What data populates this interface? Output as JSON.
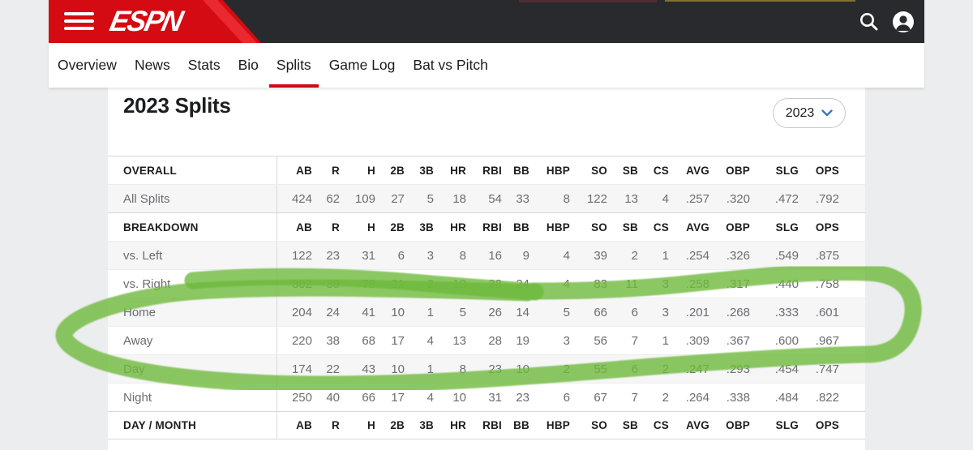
{
  "header": {
    "brand": "ESPN",
    "colors": {
      "red": "#d40b12",
      "dark": "#282a2d"
    }
  },
  "nav": {
    "items": [
      {
        "label": "Overview",
        "active": false
      },
      {
        "label": "News",
        "active": false
      },
      {
        "label": "Stats",
        "active": false
      },
      {
        "label": "Bio",
        "active": false
      },
      {
        "label": "Splits",
        "active": true
      },
      {
        "label": "Game Log",
        "active": false
      },
      {
        "label": "Bat vs Pitch",
        "active": false
      }
    ],
    "active_underline_color": "#cf0a11"
  },
  "main": {
    "title": "2023 Splits",
    "year_select": {
      "value": "2023"
    }
  },
  "table": {
    "columns": [
      "AB",
      "R",
      "H",
      "2B",
      "3B",
      "HR",
      "RBI",
      "BB",
      "HBP",
      "SO",
      "SB",
      "CS",
      "AVG",
      "OBP",
      "SLG",
      "OPS"
    ],
    "sections": [
      {
        "label": "OVERALL",
        "rows": [
          {
            "label": "All Splits",
            "values": [
              "424",
              "62",
              "109",
              "27",
              "5",
              "18",
              "54",
              "33",
              "8",
              "122",
              "13",
              "4",
              ".257",
              ".320",
              ".472",
              ".792"
            ]
          }
        ]
      },
      {
        "label": "BREAKDOWN",
        "rows": [
          {
            "label": "vs. Left",
            "values": [
              "122",
              "23",
              "31",
              "6",
              "3",
              "8",
              "16",
              "9",
              "4",
              "39",
              "2",
              "1",
              ".254",
              ".326",
              ".549",
              ".875"
            ]
          },
          {
            "label": "vs. Right",
            "values": [
              "302",
              "39",
              "78",
              "21",
              "2",
              "10",
              "38",
              "24",
              "4",
              "83",
              "11",
              "3",
              ".258",
              ".317",
              ".440",
              ".758"
            ]
          },
          {
            "label": "Home",
            "values": [
              "204",
              "24",
              "41",
              "10",
              "1",
              "5",
              "26",
              "14",
              "5",
              "66",
              "6",
              "3",
              ".201",
              ".268",
              ".333",
              ".601"
            ]
          },
          {
            "label": "Away",
            "values": [
              "220",
              "38",
              "68",
              "17",
              "4",
              "13",
              "28",
              "19",
              "3",
              "56",
              "7",
              "1",
              ".309",
              ".367",
              ".600",
              ".967"
            ]
          },
          {
            "label": "Day",
            "values": [
              "174",
              "22",
              "43",
              "10",
              "1",
              "8",
              "23",
              "10",
              "2",
              "55",
              "6",
              "2",
              ".247",
              ".293",
              ".454",
              ".747"
            ]
          },
          {
            "label": "Night",
            "values": [
              "250",
              "40",
              "66",
              "17",
              "4",
              "10",
              "31",
              "23",
              "6",
              "67",
              "7",
              "2",
              ".264",
              ".338",
              ".484",
              ".822"
            ]
          }
        ]
      },
      {
        "label": "DAY / MONTH",
        "rows": []
      }
    ]
  },
  "annotation": {
    "type": "hand-drawn-marker-loop",
    "stroke": "rgba(110,185,60,0.8)",
    "circles_rows": [
      "Home",
      "Away"
    ]
  }
}
